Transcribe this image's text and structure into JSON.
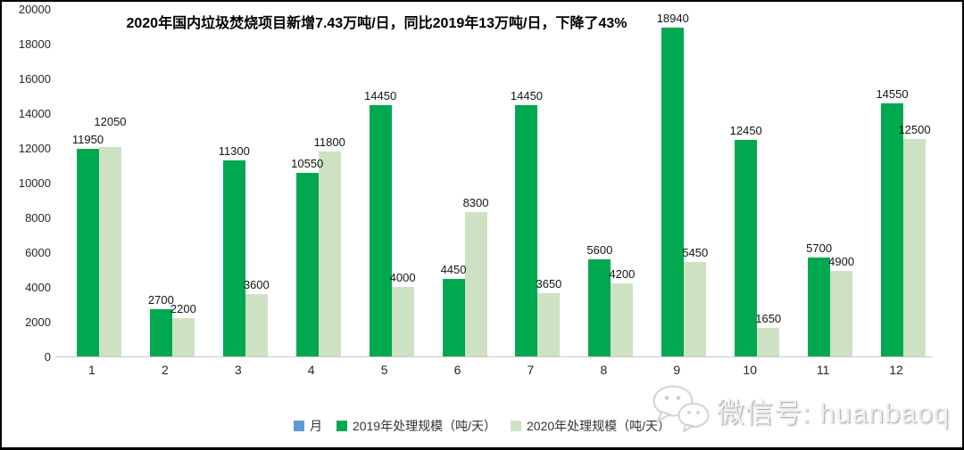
{
  "chart_data": {
    "type": "bar",
    "title": "2020年国内垃圾焚烧项目新增7.43万吨/日，同比2019年13万吨/日，下降了43%",
    "categories": [
      "1",
      "2",
      "3",
      "4",
      "5",
      "6",
      "7",
      "8",
      "9",
      "10",
      "11",
      "12"
    ],
    "series": [
      {
        "name": "2019年处理规模（吨/天）",
        "color": "#00a850",
        "values": [
          11950,
          2700,
          11300,
          10550,
          14450,
          4450,
          14450,
          5600,
          18940,
          12450,
          5700,
          14550
        ]
      },
      {
        "name": "2020年处理规模（吨/天）",
        "color": "#cde2c3",
        "values": [
          12050,
          2200,
          3600,
          11800,
          4000,
          8300,
          3650,
          4200,
          5450,
          1650,
          4900,
          12500
        ]
      }
    ],
    "xlabel": "",
    "ylabel": "",
    "ylim": [
      0,
      20000
    ],
    "yticks": [
      "0",
      "2000",
      "4000",
      "6000",
      "8000",
      "10000",
      "12000",
      "14000",
      "16000",
      "18000",
      "20000"
    ],
    "grid": false,
    "legend_position": "bottom",
    "legend": [
      {
        "label": "月",
        "color": "#5b9bd5"
      },
      {
        "label": "2019年处理规模（吨/天）",
        "color": "#00a850"
      },
      {
        "label": "2020年处理规模（吨/天）",
        "color": "#cde2c3"
      }
    ]
  },
  "watermark": {
    "icon": "wechat-icon",
    "text": "微信号: huanbaoq"
  }
}
